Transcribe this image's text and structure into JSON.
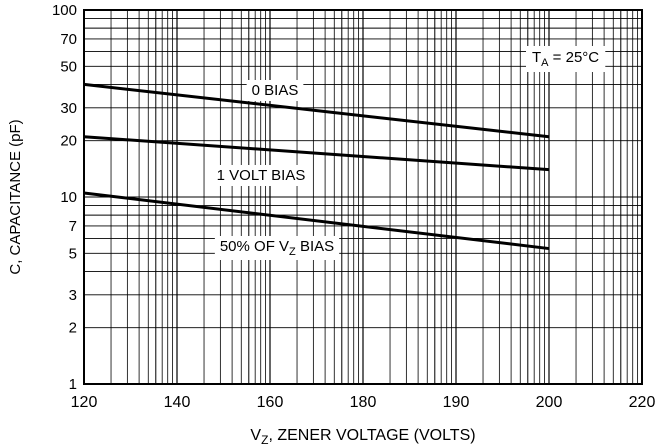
{
  "chart_data": {
    "type": "line",
    "xlabel": {
      "base": "V",
      "sub": "Z",
      "rest": ", ZENER VOLTAGE (VOLTS)"
    },
    "ylabel": "C, CAPACITANCE (pF)",
    "y_scale": "log",
    "ylim": [
      1,
      100
    ],
    "y_tick_labels": [
      "1",
      "2",
      "3",
      "5",
      "7",
      "10",
      "20",
      "30",
      "50",
      "70",
      "100"
    ],
    "x_tick_labels": [
      "120",
      "140",
      "160",
      "180",
      "190",
      "200",
      "220"
    ],
    "grid": true,
    "annotation": {
      "base": "T",
      "sub": "A",
      "rest": " = 25°C"
    },
    "series": [
      {
        "name": "0 BIAS",
        "label_parts": {
          "base": "0 BIAS",
          "sub": "",
          "rest": ""
        },
        "x": [
          "120",
          "200"
        ],
        "y": [
          40,
          21
        ]
      },
      {
        "name": "1 VOLT BIAS",
        "label_parts": {
          "base": "1 VOLT BIAS",
          "sub": "",
          "rest": ""
        },
        "x": [
          "120",
          "200"
        ],
        "y": [
          21,
          14
        ]
      },
      {
        "name": "50% OF VZ BIAS",
        "label_parts": {
          "base": "50% OF V",
          "sub": "Z",
          "rest": " BIAS"
        },
        "x": [
          "120",
          "200"
        ],
        "y": [
          10.5,
          5.3
        ]
      }
    ]
  }
}
